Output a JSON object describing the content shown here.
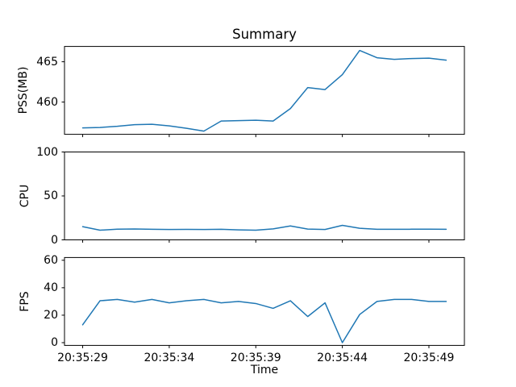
{
  "chart_data": {
    "type": "line",
    "title": "Summary",
    "xlabel": "Time",
    "grid": false,
    "legend": "none",
    "line_color": "#1f77b4",
    "axis_color": "#000000",
    "background_color": "#ffffff",
    "x": [
      "20:35:29",
      "20:35:30",
      "20:35:31",
      "20:35:32",
      "20:35:33",
      "20:35:34",
      "20:35:35",
      "20:35:36",
      "20:35:37",
      "20:35:38",
      "20:35:39",
      "20:35:40",
      "20:35:41",
      "20:35:42",
      "20:35:43",
      "20:35:44",
      "20:35:45",
      "20:35:46",
      "20:35:47",
      "20:35:48",
      "20:35:49",
      "20:35:50"
    ],
    "xtick_indices": [
      0,
      5,
      10,
      15,
      20
    ],
    "xtick_labels": [
      "20:35:29",
      "20:35:34",
      "20:35:39",
      "20:35:44",
      "20:35:49"
    ],
    "series": [
      {
        "name": "PSS(MB)",
        "values": [
          456.8,
          456.85,
          457.0,
          457.2,
          457.25,
          457.05,
          456.75,
          456.4,
          457.65,
          457.7,
          457.75,
          457.65,
          459.2,
          461.8,
          461.55,
          463.4,
          466.4,
          465.5,
          465.3,
          465.4,
          465.45,
          465.2
        ],
        "ylim": [
          456.0,
          466.9
        ],
        "ytick_values": [
          465,
          460
        ],
        "ytick_labels": [
          "465",
          "460"
        ]
      },
      {
        "name": "CPU",
        "values": [
          15,
          11,
          12.2,
          12.4,
          12.0,
          11.8,
          11.9,
          11.8,
          12.0,
          11.4,
          11.0,
          12.5,
          15.8,
          12.3,
          11.8,
          16.5,
          13.2,
          12.0,
          12.0,
          12.1,
          12.1,
          12.0
        ],
        "ylim": [
          0,
          100
        ],
        "ytick_values": [
          100,
          50,
          0
        ],
        "ytick_labels": [
          "100",
          "50",
          "0"
        ]
      },
      {
        "name": "FPS",
        "values": [
          13,
          30.5,
          31.5,
          29.5,
          31.5,
          29,
          30.5,
          31.5,
          29,
          30,
          28.5,
          25,
          30.5,
          19,
          29,
          0,
          20.5,
          30,
          31.5,
          31.5,
          30,
          30
        ],
        "ylim": [
          -2,
          62
        ],
        "ytick_values": [
          60,
          40,
          20,
          0
        ],
        "ytick_labels": [
          "60",
          "40",
          "20",
          "0"
        ]
      }
    ]
  }
}
